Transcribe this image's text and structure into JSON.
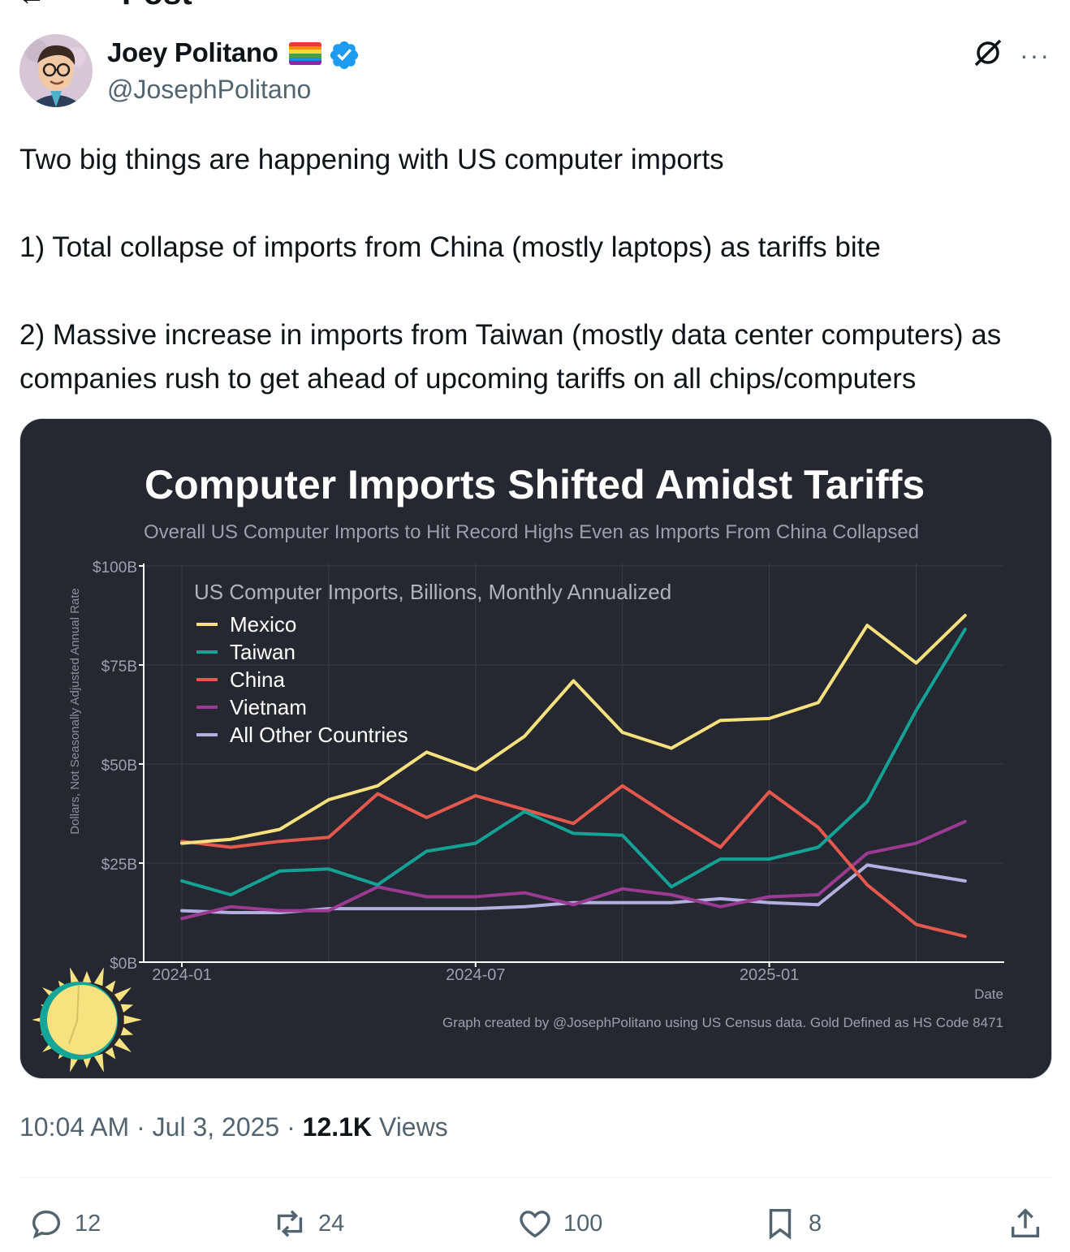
{
  "header": {
    "title": "Post"
  },
  "author": {
    "name": "Joey Politano",
    "handle": "@JosephPolitano"
  },
  "tweet": {
    "lines": [
      "Two big things are happening with US computer imports",
      "",
      "1) Total collapse of imports from China (mostly laptops) as tariffs bite",
      "",
      "2) Massive increase in imports from Taiwan (mostly data center computers) as companies rush to get ahead of upcoming tariffs on all chips/computers"
    ]
  },
  "meta": {
    "time": "10:04 AM",
    "date": "Jul 3, 2025",
    "views_count": "12.1K",
    "views_label": "Views"
  },
  "actions": {
    "replies": "12",
    "reposts": "24",
    "likes": "100",
    "bookmarks": "8"
  },
  "colors": {
    "chart_bg": "#252830",
    "mexico": "#f7e07e",
    "taiwan": "#14a296",
    "china": "#e5584e",
    "vietnam": "#9b3a92",
    "other": "#b1b0e0",
    "verified": "#1d9bf0"
  },
  "chart_data": {
    "type": "line",
    "title": "Computer Imports Shifted Amidst Tariffs",
    "subtitle": "Overall US Computer Imports to Hit Record Highs Even as Imports From China Collapsed",
    "legend_title": "US Computer Imports, Billions, Monthly Annualized",
    "ylabel": "Dollars, Not Seasonally Adjusted Annual Rate",
    "xlabel": "Date",
    "ylim": [
      0,
      100
    ],
    "y_ticks": [
      "$0B",
      "$25B",
      "$50B",
      "$75B",
      "$100B"
    ],
    "y_tick_values": [
      0,
      25,
      50,
      75,
      100
    ],
    "x_ticks": [
      "2024-01",
      "2024-07",
      "2025-01"
    ],
    "x_tick_positions": [
      0,
      6,
      12
    ],
    "x": [
      "2024-01",
      "2024-02",
      "2024-03",
      "2024-04",
      "2024-05",
      "2024-06",
      "2024-07",
      "2024-08",
      "2024-09",
      "2024-10",
      "2024-11",
      "2024-12",
      "2025-01",
      "2025-02",
      "2025-03",
      "2025-04",
      "2025-05"
    ],
    "series": [
      {
        "name": "Mexico",
        "color": "#f7e07e",
        "values": [
          30,
          31,
          33.5,
          41,
          44.5,
          53,
          48.5,
          57,
          71,
          58,
          54,
          61,
          61.5,
          65.5,
          85,
          75.5,
          87.5
        ]
      },
      {
        "name": "Taiwan",
        "color": "#14a296",
        "values": [
          20.5,
          17,
          23,
          23.5,
          19.5,
          28,
          30,
          38,
          32.5,
          32,
          19,
          26,
          26,
          29,
          40.5,
          63.5,
          84
        ]
      },
      {
        "name": "China",
        "color": "#e5584e",
        "values": [
          30.5,
          29,
          30.5,
          31.5,
          42.5,
          36.5,
          42,
          38.5,
          35,
          44.5,
          36.5,
          29,
          43,
          34,
          19.5,
          9.5,
          6.5
        ]
      },
      {
        "name": "Vietnam",
        "color": "#9b3a92",
        "values": [
          11,
          14,
          13,
          13,
          19,
          16.5,
          16.5,
          17.5,
          14.5,
          18.5,
          17,
          14,
          16.5,
          17,
          27.5,
          30,
          35.5
        ]
      },
      {
        "name": "All Other Countries",
        "color": "#b1b0e0",
        "values": [
          13,
          12.5,
          12.5,
          13.5,
          13.5,
          13.5,
          13.5,
          14,
          15,
          15,
          15,
          16,
          15,
          14.5,
          24.5,
          22.5,
          20.5
        ]
      }
    ],
    "grid": true,
    "legend_position": "top-left",
    "caption": "Graph created by @JosephPolitano using US Census data. Gold Defined as HS Code 8471"
  }
}
